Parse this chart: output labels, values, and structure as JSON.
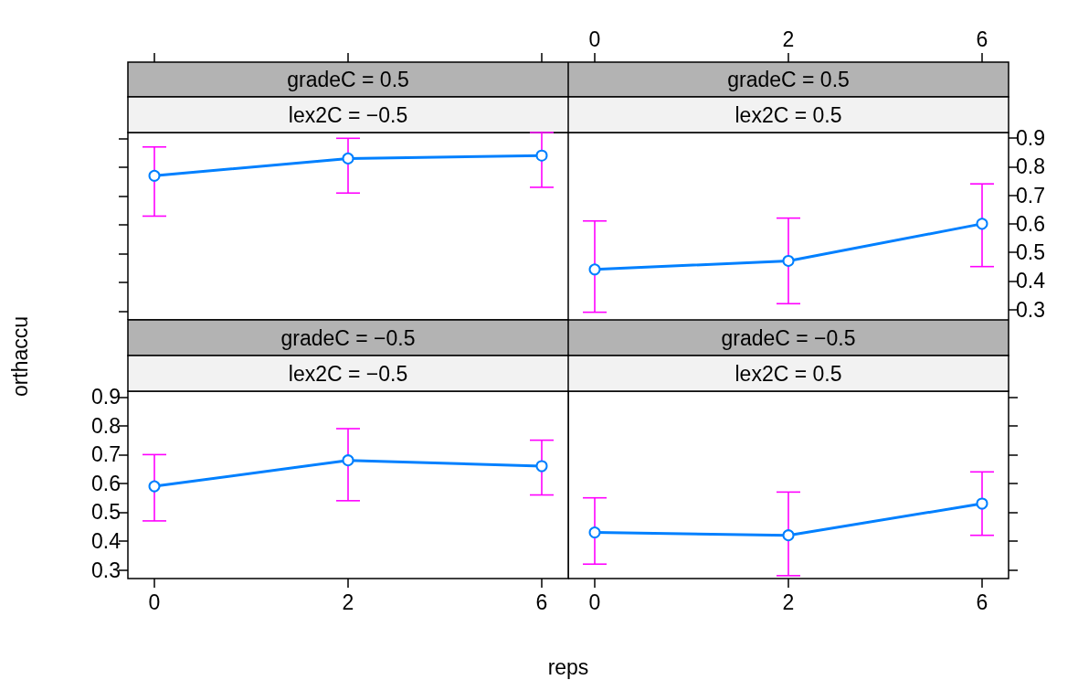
{
  "chart_data": [
    {
      "type": "line",
      "title": "gradeC = 0.5",
      "subtitle": "lex2C = −0.5",
      "categories": [
        "0",
        "2",
        "6"
      ],
      "values": [
        0.77,
        0.83,
        0.84
      ],
      "errors": [
        [
          0.63,
          0.87
        ],
        [
          0.71,
          0.9
        ],
        [
          0.73,
          0.92
        ]
      ],
      "color": "#0080ff",
      "marker": "circle",
      "line_style": "solid",
      "ylim": [
        0.27,
        0.92
      ],
      "yticks": [
        0.3,
        0.4,
        0.5,
        0.6,
        0.7,
        0.8,
        0.9
      ],
      "tick_labels": false
    },
    {
      "type": "line",
      "title": "gradeC = 0.5",
      "subtitle": "lex2C = 0.5",
      "categories": [
        "0",
        "2",
        "6"
      ],
      "values": [
        0.44,
        0.47,
        0.6
      ],
      "errors": [
        [
          0.29,
          0.61
        ],
        [
          0.32,
          0.62
        ],
        [
          0.45,
          0.74
        ]
      ],
      "color": "#0080ff",
      "marker": "circle",
      "line_style": "solid",
      "ylim": [
        0.27,
        0.92
      ],
      "yticks": [
        0.3,
        0.4,
        0.5,
        0.6,
        0.7,
        0.8,
        0.9
      ]
    },
    {
      "type": "line",
      "title": "gradeC = −0.5",
      "subtitle": "lex2C = −0.5",
      "xlabel": "reps",
      "ylabel": "orthaccu",
      "categories": [
        "0",
        "2",
        "6"
      ],
      "values": [
        0.59,
        0.68,
        0.66
      ],
      "errors": [
        [
          0.47,
          0.7
        ],
        [
          0.54,
          0.79
        ],
        [
          0.56,
          0.75
        ]
      ],
      "color": "#0080ff",
      "marker": "circle",
      "line_style": "solid",
      "ylim": [
        0.27,
        0.92
      ],
      "yticks": [
        0.3,
        0.4,
        0.5,
        0.6,
        0.7,
        0.8,
        0.9
      ]
    },
    {
      "type": "line",
      "title": "gradeC = −0.5",
      "subtitle": "lex2C = 0.5",
      "categories": [
        "0",
        "2",
        "6"
      ],
      "values": [
        0.43,
        0.42,
        0.53
      ],
      "errors": [
        [
          0.32,
          0.55
        ],
        [
          0.28,
          0.57
        ],
        [
          0.42,
          0.64
        ]
      ],
      "color": "#0080ff",
      "marker": "circle",
      "line_style": "solid",
      "ylim": [
        0.27,
        0.92
      ],
      "yticks": [
        0.3,
        0.4,
        0.5,
        0.6,
        0.7,
        0.8,
        0.9
      ],
      "tick_labels": "x"
    }
  ]
}
